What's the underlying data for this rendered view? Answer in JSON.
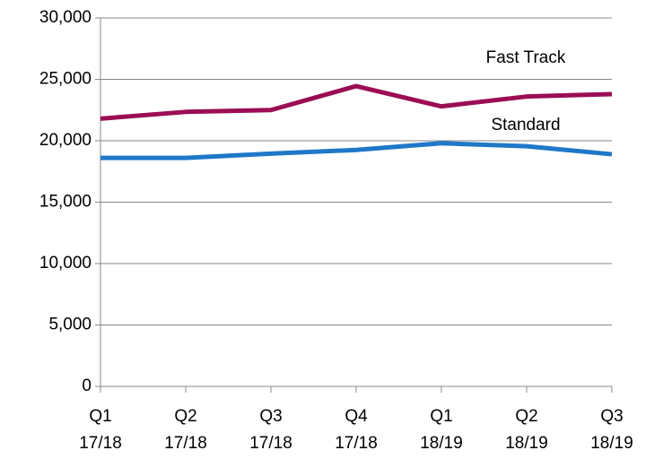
{
  "chart_data": {
    "type": "line",
    "categories": [
      "Q1 17/18",
      "Q2 17/18",
      "Q3 17/18",
      "Q4 17/18",
      "Q1 18/19",
      "Q2 18/19",
      "Q3 18/19"
    ],
    "series": [
      {
        "name": "Fast Track",
        "color": "#9b0d55",
        "values": [
          21800,
          22350,
          22500,
          24450,
          22800,
          23600,
          23800
        ]
      },
      {
        "name": "Standard",
        "color": "#1f78c8",
        "values": [
          18600,
          18600,
          18950,
          19250,
          19800,
          19550,
          18900
        ]
      }
    ],
    "ylim": [
      0,
      30000
    ],
    "yticks": [
      0,
      {
        "value": 5000,
        "label": "5,000"
      },
      {
        "value": 10000,
        "label": "10,000"
      },
      {
        "value": 15000,
        "label": "15,000"
      },
      {
        "value": 20000,
        "label": "20,000"
      },
      {
        "value": 25000,
        "label": "25,000"
      },
      {
        "value": 30000,
        "label": "30,000"
      }
    ],
    "grid": true
  }
}
